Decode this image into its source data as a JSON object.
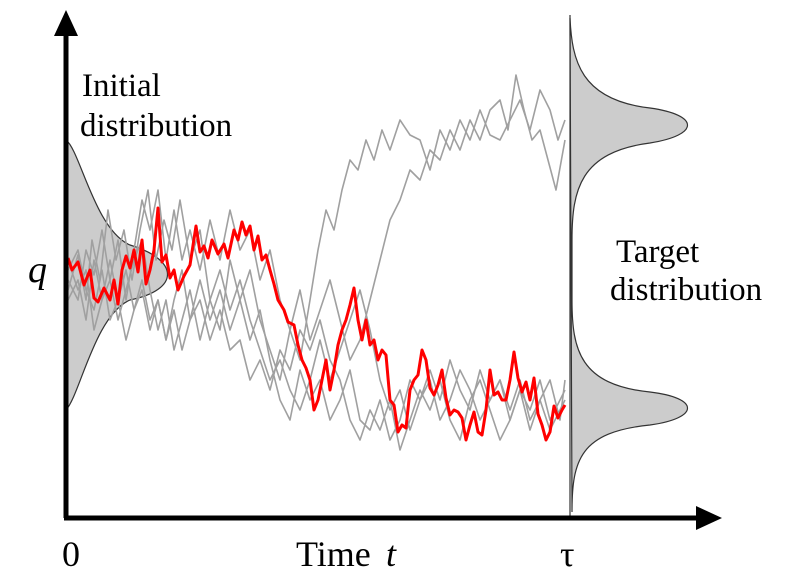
{
  "labels": {
    "initial_line1": "Initial",
    "initial_line2": "distribution",
    "target_line1": "Target",
    "target_line2": "distribution",
    "y_axis": "q",
    "x_axis_word": "Time",
    "x_axis_var": "t",
    "x_origin": "0",
    "x_end": "τ"
  },
  "colors": {
    "highlight_path": "#ff0000",
    "background_paths": "#a0a0a0",
    "distribution_fill": "#cccccc",
    "axes": "#000000"
  }
}
